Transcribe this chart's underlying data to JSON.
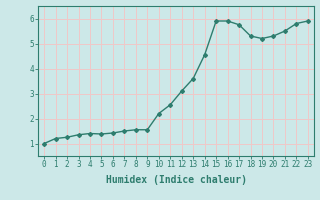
{
  "x": [
    0,
    1,
    2,
    3,
    4,
    5,
    6,
    7,
    8,
    9,
    10,
    11,
    12,
    13,
    14,
    15,
    16,
    17,
    18,
    19,
    20,
    21,
    22,
    23
  ],
  "y": [
    1.0,
    1.2,
    1.25,
    1.35,
    1.4,
    1.38,
    1.42,
    1.5,
    1.55,
    1.55,
    2.2,
    2.55,
    3.1,
    3.6,
    4.55,
    5.9,
    5.9,
    5.75,
    5.3,
    5.2,
    5.3,
    5.5,
    5.8,
    5.9
  ],
  "line_color": "#2e7d6e",
  "marker": "D",
  "marker_size": 2.0,
  "bg_color": "#cce8e8",
  "grid_color": "#f0c8c8",
  "xlabel": "Humidex (Indice chaleur)",
  "xlim": [
    -0.5,
    23.5
  ],
  "ylim": [
    0.5,
    6.5
  ],
  "yticks": [
    1,
    2,
    3,
    4,
    5,
    6
  ],
  "xticks": [
    0,
    1,
    2,
    3,
    4,
    5,
    6,
    7,
    8,
    9,
    10,
    11,
    12,
    13,
    14,
    15,
    16,
    17,
    18,
    19,
    20,
    21,
    22,
    23
  ],
  "tick_label_color": "#2e7d6e",
  "axis_color": "#2e7d6e",
  "xlabel_fontsize": 7,
  "tick_fontsize": 5.5,
  "linewidth": 1.0
}
